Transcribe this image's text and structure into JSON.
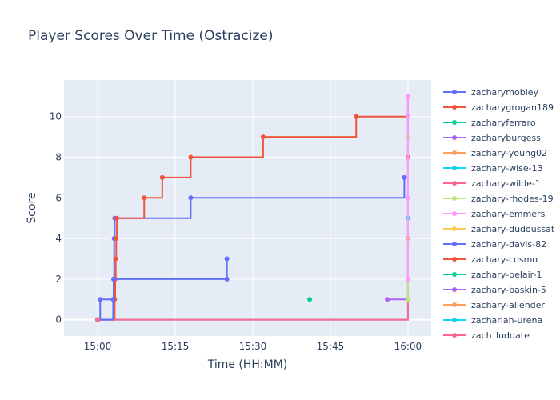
{
  "chart_data": {
    "type": "line",
    "line_shape": "step",
    "title": "Player Scores Over Time (Ostracize)",
    "xlabel": "Time (HH:MM)",
    "ylabel": "Score",
    "x_unit": "minutes after 15:00",
    "xlim": [
      -6.5,
      64.5
    ],
    "ylim": [
      -0.8,
      11.8
    ],
    "x_ticks": [
      {
        "value": 0,
        "label": "15:00"
      },
      {
        "value": 15,
        "label": "15:15"
      },
      {
        "value": 30,
        "label": "15:30"
      },
      {
        "value": 45,
        "label": "15:45"
      },
      {
        "value": 60,
        "label": "16:00"
      }
    ],
    "y_ticks": [
      0,
      2,
      4,
      6,
      8,
      10
    ],
    "grid": true,
    "legend_position": "right",
    "plot_background": "#e5ecf6",
    "series": [
      {
        "name": "zacharymobley",
        "color": "#636efa",
        "x": [
          0,
          0.5,
          3,
          3.1,
          3.2,
          3.3,
          18,
          59.3,
          60
        ],
        "y": [
          0,
          1,
          1,
          2,
          4,
          5,
          6,
          7,
          11
        ]
      },
      {
        "name": "zacharygrogan189",
        "color": "#ef553b",
        "x": [
          0,
          3.3,
          3.4,
          3.5,
          3.6,
          3.7,
          9,
          12.5,
          18,
          32,
          50,
          60
        ],
        "y": [
          0,
          1,
          2,
          3,
          4,
          5,
          6,
          7,
          8,
          9,
          10,
          11
        ]
      },
      {
        "name": "zacharyferraro",
        "color": "#00cc96",
        "x": [
          41
        ],
        "y": [
          1
        ]
      },
      {
        "name": "zacharyburgess",
        "color": "#ab63fa",
        "x": [
          56,
          60
        ],
        "y": [
          1,
          1
        ]
      },
      {
        "name": "zachary-young02",
        "color": "#ffa15a",
        "x": [
          0,
          60
        ],
        "y": [
          0,
          4
        ]
      },
      {
        "name": "zachary-wise-13",
        "color": "#19d3f3",
        "x": [
          0,
          60
        ],
        "y": [
          0,
          5
        ]
      },
      {
        "name": "zachary-wilde-1",
        "color": "#ff6692",
        "x": [
          0,
          60
        ],
        "y": [
          0,
          8
        ]
      },
      {
        "name": "zachary-rhodes-19",
        "color": "#b6e880",
        "x": [
          60,
          60
        ],
        "y": [
          1,
          9
        ]
      },
      {
        "name": "zachary-emmers",
        "color": "#ff97ff",
        "x": [
          60,
          60,
          60,
          60
        ],
        "y": [
          2,
          6,
          10,
          11
        ]
      },
      {
        "name": "zachary-dudoussat",
        "color": "#fecb52",
        "x": [
          0
        ],
        "y": [
          0
        ]
      },
      {
        "name": "zachary-davis-82",
        "color": "#636efa",
        "x": [
          0,
          3,
          3.1,
          25,
          25
        ],
        "y": [
          0,
          1,
          2,
          2,
          3
        ]
      },
      {
        "name": "zachary-cosmo",
        "color": "#ef553b",
        "x": [
          0
        ],
        "y": [
          0
        ]
      },
      {
        "name": "zachary-belair-1",
        "color": "#00cc96",
        "x": [
          0
        ],
        "y": [
          0
        ]
      },
      {
        "name": "zachary-baskin-5",
        "color": "#ab63fa",
        "x": [
          0
        ],
        "y": [
          0
        ]
      },
      {
        "name": "zachary-allender",
        "color": "#ffa15a",
        "x": [
          0
        ],
        "y": [
          0
        ]
      },
      {
        "name": "zachariah-urena",
        "color": "#19d3f3",
        "x": [
          0
        ],
        "y": [
          0
        ]
      },
      {
        "name": "zach_ludgate",
        "color": "#ff6692",
        "x": [
          0
        ],
        "y": [
          0
        ]
      }
    ]
  }
}
